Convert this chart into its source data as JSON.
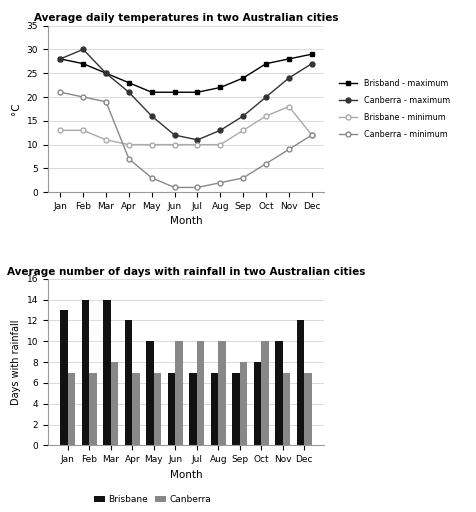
{
  "months": [
    "Jan",
    "Feb",
    "Mar",
    "Apr",
    "May",
    "Jun",
    "Jul",
    "Aug",
    "Sep",
    "Oct",
    "Nov",
    "Dec"
  ],
  "brisbane_max": [
    28,
    27,
    25,
    23,
    21,
    21,
    21,
    22,
    24,
    27,
    28,
    29
  ],
  "canberra_max": [
    28,
    30,
    25,
    21,
    16,
    12,
    11,
    13,
    16,
    20,
    24,
    27
  ],
  "brisbane_min": [
    13,
    13,
    11,
    10,
    10,
    10,
    10,
    10,
    13,
    16,
    18,
    12
  ],
  "canberra_min": [
    21,
    20,
    19,
    7,
    3,
    1,
    1,
    2,
    3,
    6,
    9,
    12
  ],
  "brisbane_rain": [
    13,
    14,
    14,
    12,
    10,
    7,
    7,
    7,
    7,
    8,
    10,
    12
  ],
  "canberra_rain": [
    7,
    7,
    8,
    7,
    7,
    10,
    10,
    10,
    8,
    10,
    7,
    7
  ],
  "line_color_brisbane_max": "#000000",
  "line_color_canberra_max": "#333333",
  "line_color_brisbane_min": "#aaaaaa",
  "line_color_canberra_min": "#888888",
  "bar_color_brisbane": "#111111",
  "bar_color_canberra": "#888888",
  "title_temp": "Average daily temperatures in two Australian cities",
  "title_rain": "Average number of days with rainfall in two Australian cities",
  "ylabel_temp": "°C",
  "ylabel_rain": "Days with rainfall",
  "xlabel": "Month",
  "ylim_temp": [
    0,
    35
  ],
  "ylim_rain": [
    0,
    16
  ],
  "yticks_temp": [
    0,
    5,
    10,
    15,
    20,
    25,
    30,
    35
  ],
  "yticks_rain": [
    0,
    2,
    4,
    6,
    8,
    10,
    12,
    14,
    16
  ]
}
